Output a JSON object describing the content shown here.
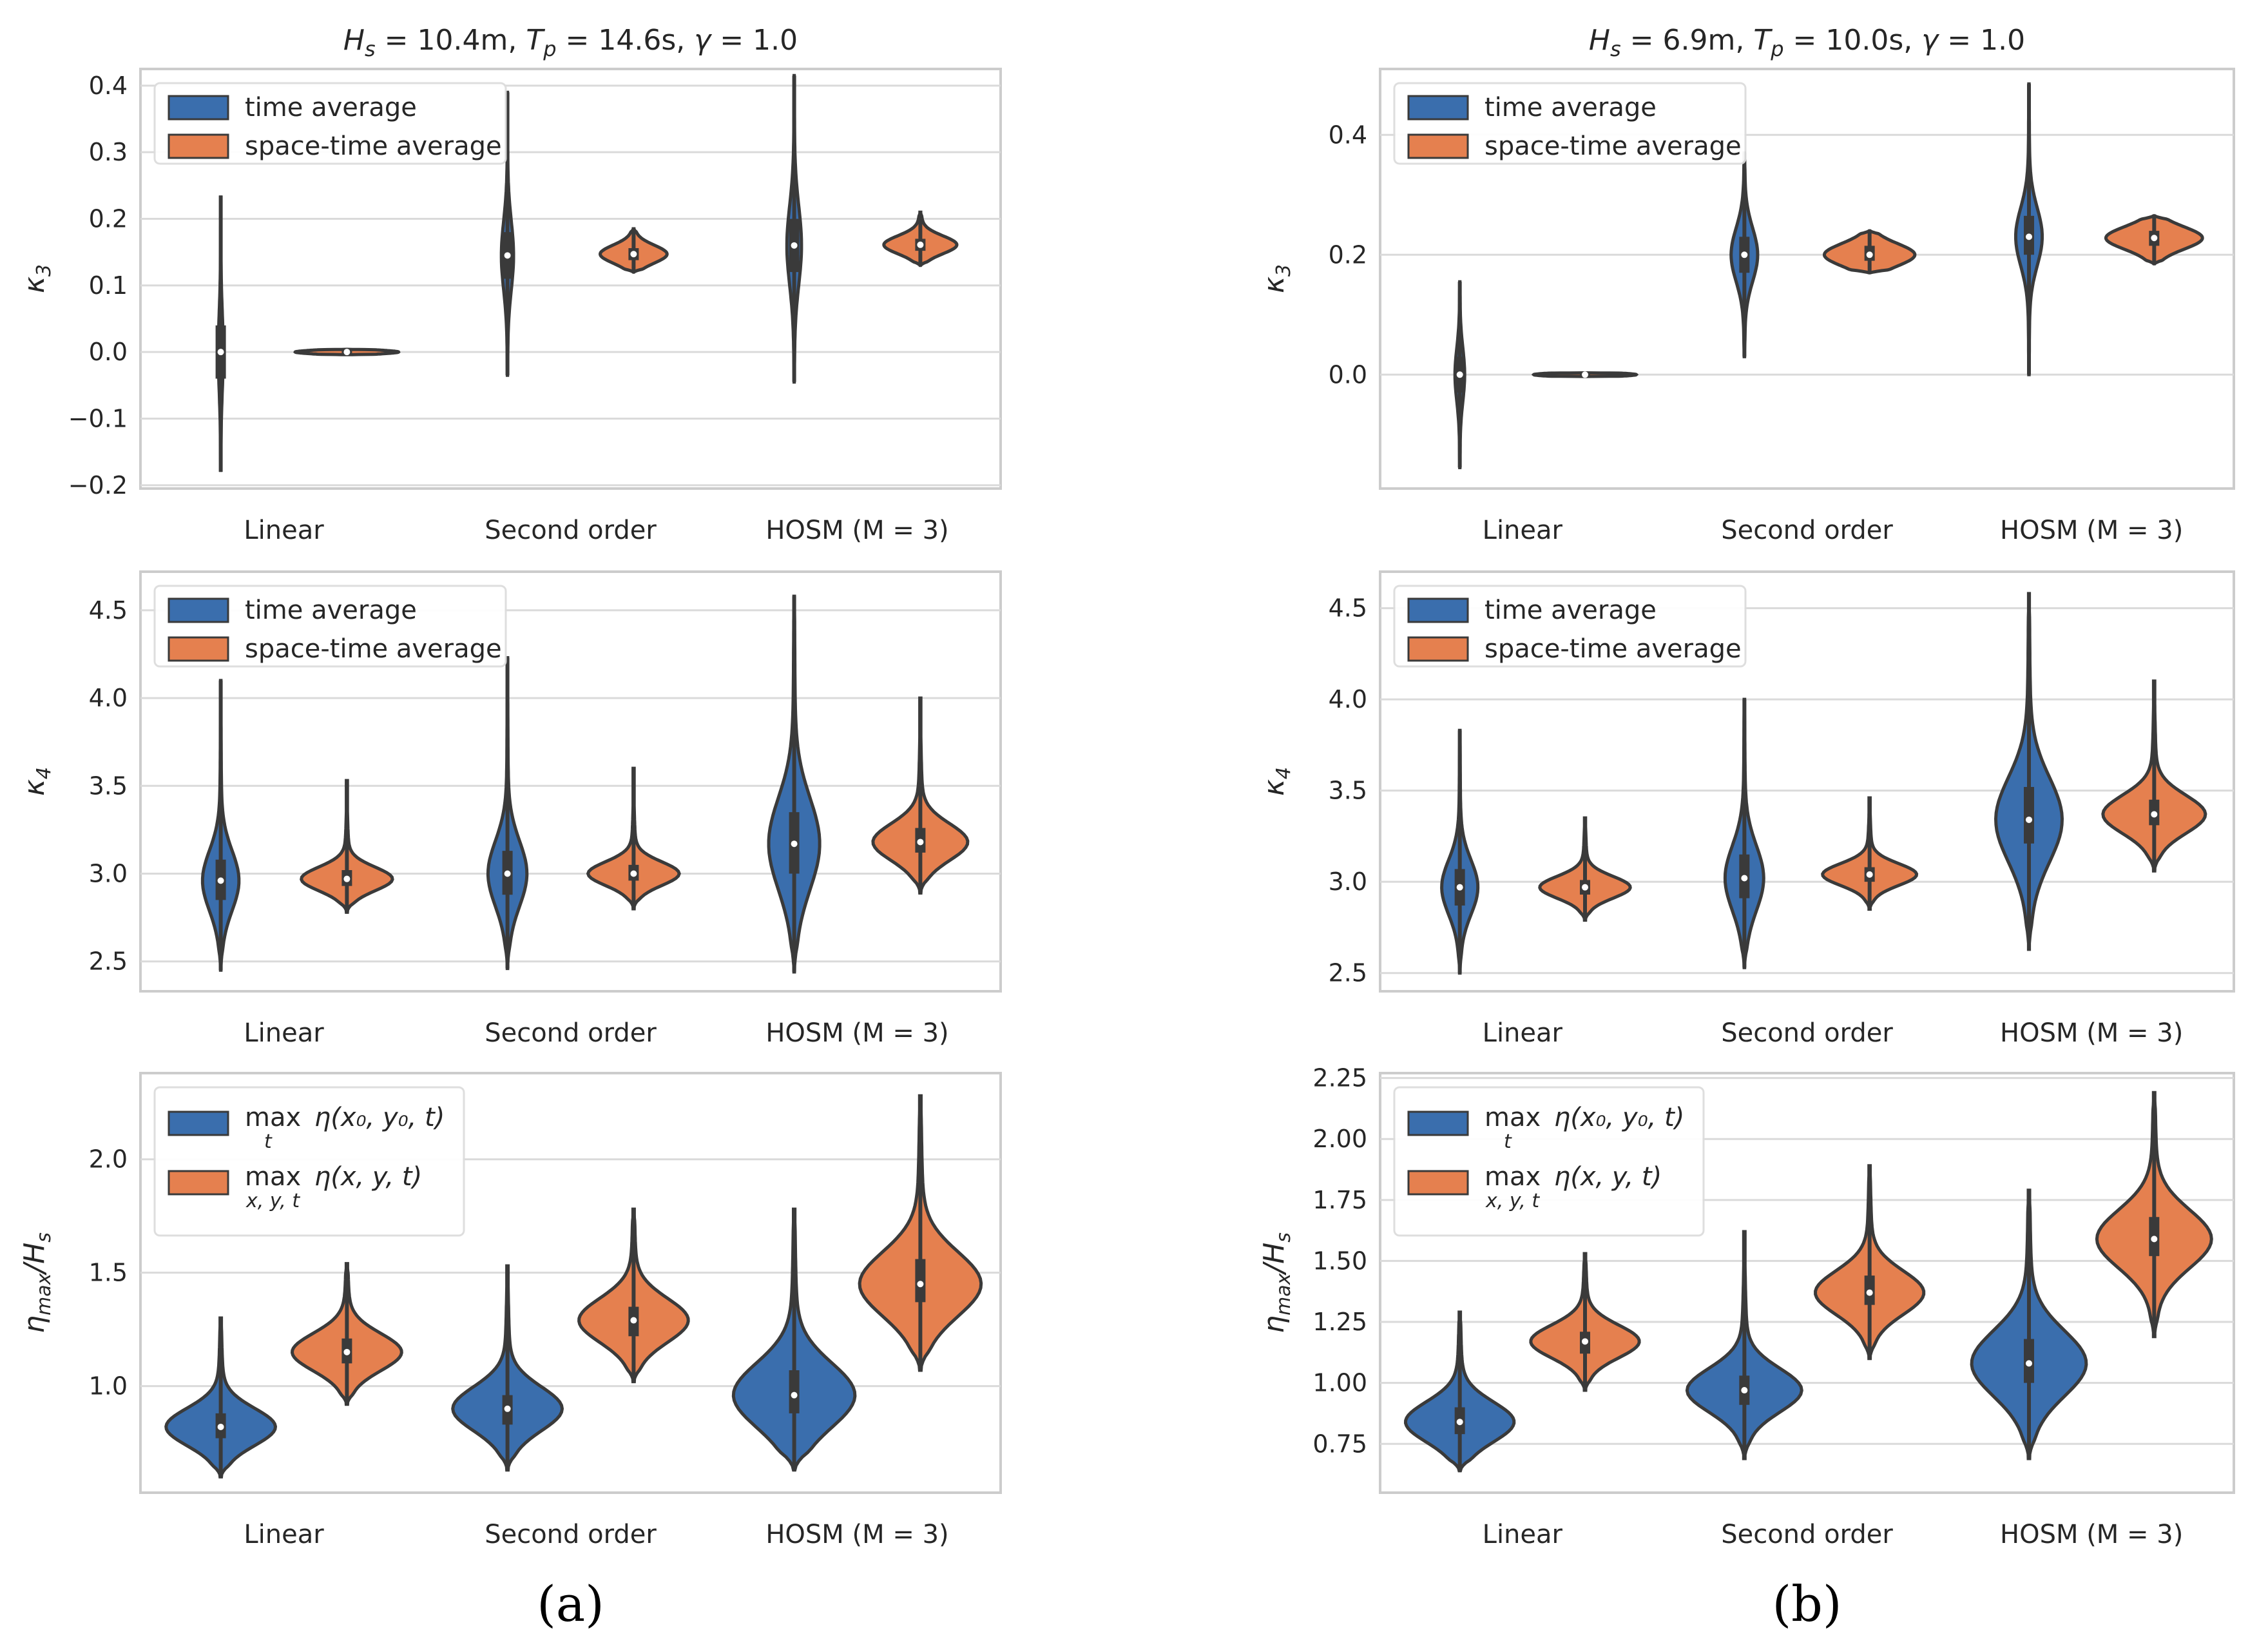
{
  "colors": {
    "time": "#3A6EAD",
    "spacetime": "#E5804F",
    "grid": "#DADADA",
    "frame": "#CCCCCC",
    "outline": "#3A3A3A"
  },
  "panel_labels": {
    "a": "(a)",
    "b": "(b)"
  },
  "chart_data": [
    {
      "id": "a_k3",
      "type": "violin",
      "column": "a",
      "row": 0,
      "title": "H_s = 10.4m, T_p = 14.6s, γ = 1.0",
      "title_parts": [
        "H",
        "s",
        " = 10.4m, ",
        "T",
        "p",
        " = 14.6s, ",
        "γ",
        " = 1.0"
      ],
      "ylabel": "κ",
      "ylabel_sub": "3",
      "ylim": [
        -0.205,
        0.425
      ],
      "yticks": [
        -0.2,
        -0.1,
        0.0,
        0.1,
        0.2,
        0.3,
        0.4
      ],
      "ytick_labels": [
        "−0.2",
        "−0.1",
        "0.0",
        "0.1",
        "0.2",
        "0.3",
        "0.4"
      ],
      "categories": [
        "Linear",
        "Second order",
        "HOSM (M = 3)"
      ],
      "legend": {
        "placement": "top-left",
        "entries": [
          "time average",
          "space-time average"
        ]
      },
      "series": [
        {
          "name": "time average",
          "violins": [
            {
              "min": -0.18,
              "q1": -0.04,
              "median": 0.0,
              "q3": 0.04,
              "max": 0.235,
              "width": 0.04
            },
            {
              "min": -0.035,
              "q1": 0.11,
              "median": 0.145,
              "q3": 0.18,
              "max": 0.39,
              "width": 0.1
            },
            {
              "min": -0.045,
              "q1": 0.12,
              "median": 0.16,
              "q3": 0.2,
              "max": 0.415,
              "width": 0.12
            }
          ]
        },
        {
          "name": "space-time average",
          "violins": [
            {
              "min": -0.004,
              "q1": -0.002,
              "median": 0.0,
              "q3": 0.002,
              "max": 0.004,
              "width": 0.85
            },
            {
              "min": 0.12,
              "q1": 0.138,
              "median": 0.147,
              "q3": 0.156,
              "max": 0.185,
              "width": 0.55
            },
            {
              "min": 0.13,
              "q1": 0.152,
              "median": 0.161,
              "q3": 0.17,
              "max": 0.21,
              "width": 0.6
            }
          ]
        }
      ]
    },
    {
      "id": "a_k4",
      "type": "violin",
      "column": "a",
      "row": 1,
      "title": "",
      "ylabel": "κ",
      "ylabel_sub": "4",
      "ylim": [
        2.33,
        4.72
      ],
      "yticks": [
        2.5,
        3.0,
        3.5,
        4.0,
        4.5
      ],
      "ytick_labels": [
        "2.5",
        "3.0",
        "3.5",
        "4.0",
        "4.5"
      ],
      "categories": [
        "Linear",
        "Second order",
        "HOSM (M = 3)"
      ],
      "legend": {
        "placement": "top-left",
        "entries": [
          "time average",
          "space-time average"
        ]
      },
      "series": [
        {
          "name": "time average",
          "violins": [
            {
              "min": 2.45,
              "q1": 2.85,
              "median": 2.96,
              "q3": 3.08,
              "max": 4.1,
              "width": 0.3
            },
            {
              "min": 2.46,
              "q1": 2.88,
              "median": 3.0,
              "q3": 3.13,
              "max": 4.23,
              "width": 0.32
            },
            {
              "min": 2.44,
              "q1": 3.0,
              "median": 3.17,
              "q3": 3.35,
              "max": 4.58,
              "width": 0.42
            }
          ]
        },
        {
          "name": "space-time average",
          "violins": [
            {
              "min": 2.78,
              "q1": 2.93,
              "median": 2.97,
              "q3": 3.02,
              "max": 3.53,
              "width": 0.75
            },
            {
              "min": 2.8,
              "q1": 2.96,
              "median": 3.0,
              "q3": 3.05,
              "max": 3.6,
              "width": 0.75
            },
            {
              "min": 2.89,
              "q1": 3.12,
              "median": 3.18,
              "q3": 3.26,
              "max": 4.0,
              "width": 0.78
            }
          ]
        }
      ]
    },
    {
      "id": "a_eta",
      "type": "violin",
      "column": "a",
      "row": 2,
      "title": "",
      "ylabel": "η",
      "ylabel_sub": "max",
      "ylabel_tail": "/H",
      "ylabel_tail_sub": "s",
      "ylim": [
        0.53,
        2.38
      ],
      "yticks": [
        1.0,
        1.5,
        2.0
      ],
      "ytick_labels": [
        "1.0",
        "1.5",
        "2.0"
      ],
      "categories": [
        "Linear",
        "Second order",
        "HOSM (M = 3)"
      ],
      "legend": {
        "placement": "top-left",
        "entries": [
          "max_t η(x_0, y_0, t)",
          "max_(x,y,t) η(x, y, t)"
        ],
        "entry_parts": [
          {
            "op": "max",
            "sub": "t",
            "expr": "η(x₀, y₀, t)"
          },
          {
            "op": "max",
            "sub": "x, y, t",
            "expr": "η(x, y, t)"
          }
        ]
      },
      "series": [
        {
          "name": "max_t η(x_0, y_0, t)",
          "violins": [
            {
              "min": 0.6,
              "q1": 0.77,
              "median": 0.82,
              "q3": 0.88,
              "max": 1.3,
              "width": 0.9
            },
            {
              "min": 0.63,
              "q1": 0.83,
              "median": 0.9,
              "q3": 0.96,
              "max": 1.53,
              "width": 0.9
            },
            {
              "min": 0.63,
              "q1": 0.88,
              "median": 0.96,
              "q3": 1.07,
              "max": 1.78,
              "width": 1.0
            }
          ]
        },
        {
          "name": "max_(x,y,t) η(x, y, t)",
          "violins": [
            {
              "min": 0.92,
              "q1": 1.1,
              "median": 1.15,
              "q3": 1.21,
              "max": 1.54,
              "width": 0.9
            },
            {
              "min": 1.02,
              "q1": 1.22,
              "median": 1.29,
              "q3": 1.35,
              "max": 1.78,
              "width": 0.9
            },
            {
              "min": 1.07,
              "q1": 1.37,
              "median": 1.45,
              "q3": 1.56,
              "max": 2.28,
              "width": 1.0
            }
          ]
        }
      ]
    },
    {
      "id": "b_k3",
      "type": "violin",
      "column": "b",
      "row": 0,
      "title": "H_s = 6.9m, T_p = 10.0s, γ = 1.0",
      "title_parts": [
        "H",
        "s",
        " = 6.9m, ",
        "T",
        "p",
        " = 10.0s, ",
        "γ",
        " = 1.0"
      ],
      "ylabel": "κ",
      "ylabel_sub": "3",
      "ylim": [
        -0.19,
        0.51
      ],
      "yticks": [
        0.0,
        0.2,
        0.4
      ],
      "ytick_labels": [
        "0.0",
        "0.2",
        "0.4"
      ],
      "categories": [
        "Linear",
        "Second order",
        "HOSM (M = 3)"
      ],
      "legend": {
        "placement": "top-left",
        "entries": [
          "time average",
          "space-time average"
        ]
      },
      "series": [
        {
          "name": "time average",
          "violins": [
            {
              "min": -0.155,
              "q1": -0.03,
              "median": 0.0,
              "q3": 0.03,
              "max": 0.155,
              "width": 0.08
            },
            {
              "min": 0.03,
              "q1": 0.17,
              "median": 0.2,
              "q3": 0.23,
              "max": 0.37,
              "width": 0.22
            },
            {
              "min": 0.0,
              "q1": 0.2,
              "median": 0.23,
              "q3": 0.265,
              "max": 0.485,
              "width": 0.22
            }
          ]
        },
        {
          "name": "space-time average",
          "violins": [
            {
              "min": -0.003,
              "q1": -0.002,
              "median": 0.0,
              "q3": 0.002,
              "max": 0.003,
              "width": 0.85
            },
            {
              "min": 0.17,
              "q1": 0.19,
              "median": 0.2,
              "q3": 0.215,
              "max": 0.24,
              "width": 0.75
            },
            {
              "min": 0.185,
              "q1": 0.215,
              "median": 0.228,
              "q3": 0.24,
              "max": 0.265,
              "width": 0.8
            }
          ]
        }
      ]
    },
    {
      "id": "b_k4",
      "type": "violin",
      "column": "b",
      "row": 1,
      "title": "",
      "ylabel": "κ",
      "ylabel_sub": "4",
      "ylim": [
        2.4,
        4.7
      ],
      "yticks": [
        2.5,
        3.0,
        3.5,
        4.0,
        4.5
      ],
      "ytick_labels": [
        "2.5",
        "3.0",
        "3.5",
        "4.0",
        "4.5"
      ],
      "categories": [
        "Linear",
        "Second order",
        "HOSM (M = 3)"
      ],
      "legend": {
        "placement": "top-left",
        "entries": [
          "time average",
          "space-time average"
        ]
      },
      "series": [
        {
          "name": "time average",
          "violins": [
            {
              "min": 2.5,
              "q1": 2.87,
              "median": 2.97,
              "q3": 3.07,
              "max": 3.83,
              "width": 0.3
            },
            {
              "min": 2.53,
              "q1": 2.91,
              "median": 3.02,
              "q3": 3.15,
              "max": 4.0,
              "width": 0.32
            },
            {
              "min": 2.63,
              "q1": 3.21,
              "median": 3.34,
              "q3": 3.52,
              "max": 4.58,
              "width": 0.55
            }
          ]
        },
        {
          "name": "space-time average",
          "violins": [
            {
              "min": 2.79,
              "q1": 2.93,
              "median": 2.97,
              "q3": 3.01,
              "max": 3.35,
              "width": 0.75
            },
            {
              "min": 2.85,
              "q1": 3.0,
              "median": 3.04,
              "q3": 3.08,
              "max": 3.46,
              "width": 0.78
            },
            {
              "min": 3.06,
              "q1": 3.31,
              "median": 3.37,
              "q3": 3.45,
              "max": 4.1,
              "width": 0.85
            }
          ]
        }
      ]
    },
    {
      "id": "b_eta",
      "type": "violin",
      "column": "b",
      "row": 2,
      "title": "",
      "ylabel": "η",
      "ylabel_sub": "max",
      "ylabel_tail": "/H",
      "ylabel_tail_sub": "s",
      "ylim": [
        0.55,
        2.27
      ],
      "yticks": [
        0.75,
        1.0,
        1.25,
        1.5,
        1.75,
        2.0,
        2.25
      ],
      "ytick_labels": [
        "0.75",
        "1.00",
        "1.25",
        "1.50",
        "1.75",
        "2.00",
        "2.25"
      ],
      "categories": [
        "Linear",
        "Second order",
        "HOSM (M = 3)"
      ],
      "legend": {
        "placement": "top-left",
        "entries": [
          "max_t η(x_0, y_0, t)",
          "max_(x,y,t) η(x, y, t)"
        ],
        "entry_parts": [
          {
            "op": "max",
            "sub": "t",
            "expr": "η(x₀, y₀, t)"
          },
          {
            "op": "max",
            "sub": "x, y, t",
            "expr": "η(x, y, t)"
          }
        ]
      },
      "series": [
        {
          "name": "max_t η(x_0, y_0, t)",
          "violins": [
            {
              "min": 0.64,
              "q1": 0.79,
              "median": 0.84,
              "q3": 0.9,
              "max": 1.29,
              "width": 0.9
            },
            {
              "min": 0.69,
              "q1": 0.91,
              "median": 0.97,
              "q3": 1.03,
              "max": 1.62,
              "width": 0.95
            },
            {
              "min": 0.69,
              "q1": 1.0,
              "median": 1.08,
              "q3": 1.18,
              "max": 1.79,
              "width": 0.95
            }
          ]
        },
        {
          "name": "max_(x,y,t) η(x, y, t)",
          "violins": [
            {
              "min": 0.97,
              "q1": 1.12,
              "median": 1.17,
              "q3": 1.21,
              "max": 1.53,
              "width": 0.9
            },
            {
              "min": 1.1,
              "q1": 1.32,
              "median": 1.37,
              "q3": 1.44,
              "max": 1.89,
              "width": 0.9
            },
            {
              "min": 1.19,
              "q1": 1.52,
              "median": 1.59,
              "q3": 1.68,
              "max": 2.19,
              "width": 0.95
            }
          ]
        }
      ]
    }
  ]
}
